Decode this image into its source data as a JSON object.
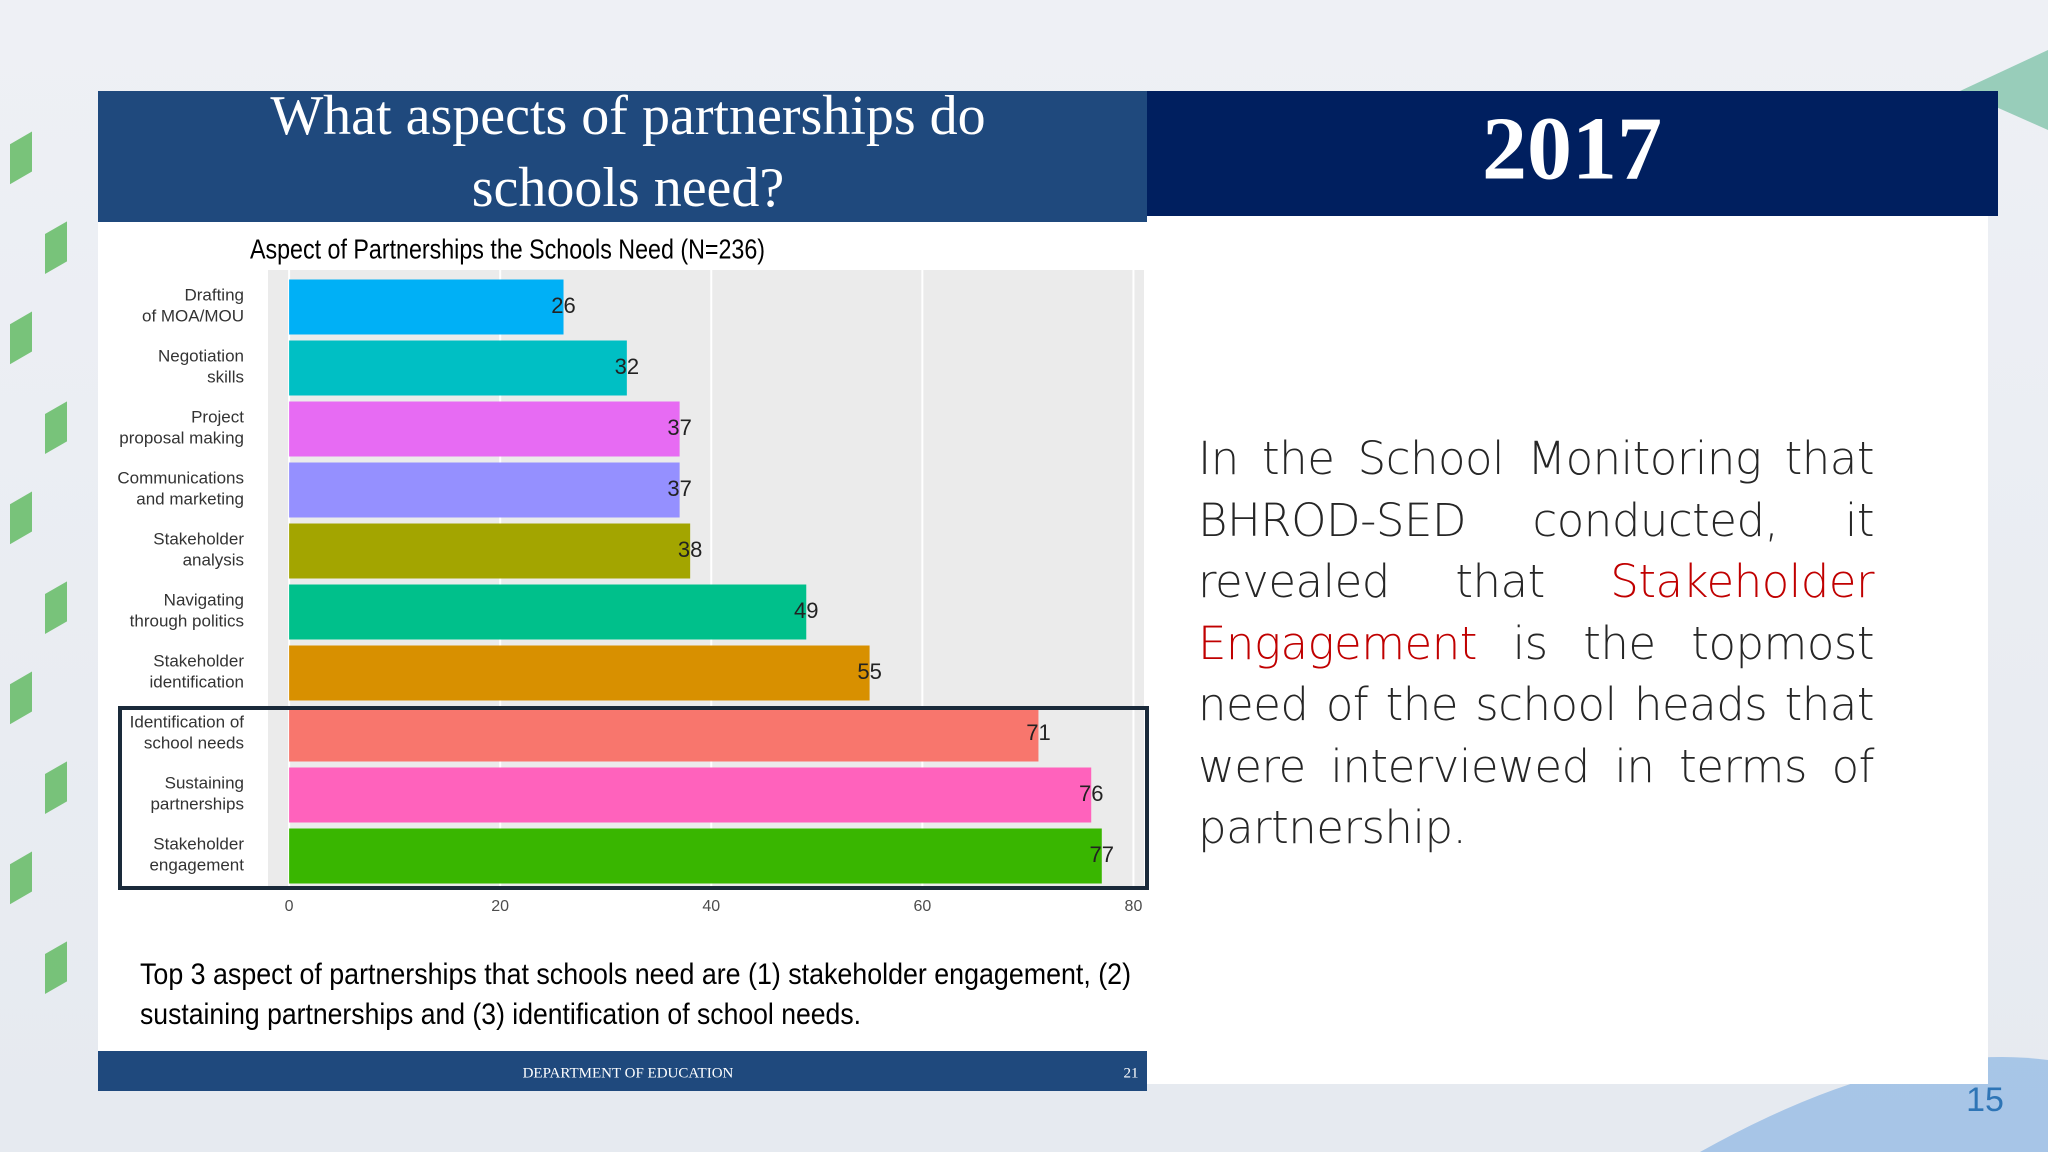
{
  "slide": {
    "header_title": "What aspects of partnerships do\nschools need?",
    "year": "2017",
    "caption": "Top 3 aspect of partnerships that schools need are (1) stakeholder engagement, (2)\nsustaining partnerships and (3) identification of school needs.",
    "footer": "DEPARTMENT OF EDUCATION",
    "footer_page": "21",
    "paragraph": {
      "before": "In the School Monitoring that BHROD-SED conducted, it revealed that",
      "highlight": "Stakeholder Engagement",
      "after": "is the topmost need of the school heads that were interviewed in terms of partnership."
    },
    "page_number": "15"
  },
  "chart_data": {
    "type": "bar",
    "orientation": "horizontal",
    "title": "Aspect of Partnerships the Schools Need (N=236)",
    "categories": [
      "Drafting\nof MOA/MOU",
      "Negotiation\nskills",
      "Project\nproposal making",
      "Communications\nand marketing",
      "Stakeholder\nanalysis",
      "Navigating\nthrough politics",
      "Stakeholder\nidentification",
      "Identification of\nschool needs",
      "Sustaining\npartnerships",
      "Stakeholder\nengagement"
    ],
    "values": [
      26,
      32,
      37,
      37,
      38,
      49,
      55,
      71,
      76,
      77
    ],
    "colors": [
      "#00b0f6",
      "#00bfc4",
      "#e76bf3",
      "#9590ff",
      "#a3a500",
      "#00c08b",
      "#d89000",
      "#f8766d",
      "#ff62bc",
      "#39b600"
    ],
    "xlim": [
      -2,
      81
    ],
    "xticks": [
      0,
      20,
      40,
      60,
      80
    ],
    "grid": true
  }
}
